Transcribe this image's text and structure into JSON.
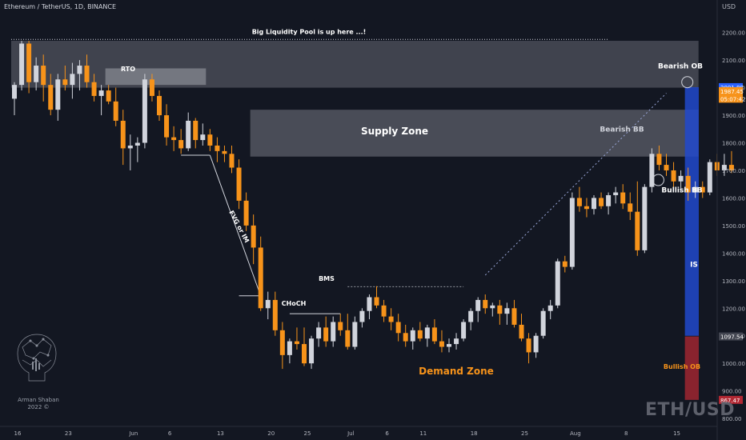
{
  "header": {
    "symbol": "Ethereum / TetherUS, 1D, BINANCE",
    "currency": "USD"
  },
  "watermark": "ETH/USD",
  "logo": {
    "name": "Arman Shaban",
    "year": "2022 ©"
  },
  "chart_data": {
    "type": "candlestick",
    "title": "",
    "ylim": [
      780,
      2260
    ],
    "y_ticks": [
      800,
      900,
      1000,
      1100,
      1200,
      1300,
      1400,
      1500,
      1600,
      1700,
      1800,
      1900,
      2000,
      2100,
      2200
    ],
    "x_ticks": [
      {
        "label": "16",
        "idx": 0
      },
      {
        "label": "23",
        "idx": 7
      },
      {
        "label": "Jun",
        "idx": 16
      },
      {
        "label": "6",
        "idx": 21
      },
      {
        "label": "13",
        "idx": 28
      },
      {
        "label": "20",
        "idx": 35
      },
      {
        "label": "25",
        "idx": 40
      },
      {
        "label": "Jul",
        "idx": 46
      },
      {
        "label": "6",
        "idx": 51
      },
      {
        "label": "11",
        "idx": 56
      },
      {
        "label": "18",
        "idx": 63
      },
      {
        "label": "25",
        "idx": 70
      },
      {
        "label": "Aug",
        "idx": 77
      },
      {
        "label": "8",
        "idx": 84
      },
      {
        "label": "15",
        "idx": 91
      }
    ],
    "price_labels": [
      {
        "value": 2001.88,
        "text": "2001.88",
        "color": "#2962ff"
      },
      {
        "value": 1987.45,
        "text": "1987.45",
        "color": "#f7931a"
      },
      {
        "value": 1960,
        "text": "05:07:42",
        "color": "#f7931a"
      },
      {
        "value": 1097.54,
        "text": "1097.54",
        "color": "#434651"
      },
      {
        "value": 867.47,
        "text": "867.47",
        "color": "#b22833"
      }
    ],
    "candles": [
      [
        1960,
        2020,
        1900,
        2010
      ],
      [
        2010,
        2170,
        1990,
        2160
      ],
      [
        2160,
        2170,
        1980,
        2020
      ],
      [
        2020,
        2110,
        1990,
        2080
      ],
      [
        2080,
        2120,
        1950,
        2010
      ],
      [
        2010,
        2050,
        1900,
        1920
      ],
      [
        1920,
        2050,
        1880,
        2030
      ],
      [
        2030,
        2080,
        1990,
        2010
      ],
      [
        2010,
        2090,
        1960,
        2050
      ],
      [
        2050,
        2100,
        1990,
        2080
      ],
      [
        2080,
        2120,
        2000,
        2020
      ],
      [
        2020,
        2050,
        1950,
        1970
      ],
      [
        1970,
        2010,
        1900,
        1990
      ],
      [
        1990,
        2010,
        1940,
        1950
      ],
      [
        1950,
        2000,
        1860,
        1880
      ],
      [
        1880,
        1920,
        1720,
        1780
      ],
      [
        1780,
        1830,
        1700,
        1790
      ],
      [
        1790,
        1820,
        1730,
        1800
      ],
      [
        1800,
        2050,
        1780,
        2030
      ],
      [
        2030,
        2050,
        1950,
        1970
      ],
      [
        1970,
        1990,
        1880,
        1900
      ],
      [
        1900,
        1940,
        1790,
        1820
      ],
      [
        1820,
        1860,
        1770,
        1810
      ],
      [
        1810,
        1850,
        1760,
        1780
      ],
      [
        1780,
        1910,
        1770,
        1880
      ],
      [
        1880,
        1890,
        1780,
        1810
      ],
      [
        1810,
        1870,
        1790,
        1830
      ],
      [
        1830,
        1850,
        1770,
        1790
      ],
      [
        1790,
        1820,
        1730,
        1770
      ],
      [
        1770,
        1790,
        1730,
        1760
      ],
      [
        1760,
        1790,
        1690,
        1710
      ],
      [
        1710,
        1740,
        1560,
        1590
      ],
      [
        1590,
        1620,
        1480,
        1500
      ],
      [
        1500,
        1540,
        1360,
        1420
      ],
      [
        1420,
        1460,
        1190,
        1200
      ],
      [
        1200,
        1260,
        1160,
        1230
      ],
      [
        1230,
        1260,
        1100,
        1120
      ],
      [
        1120,
        1150,
        980,
        1030
      ],
      [
        1030,
        1090,
        1000,
        1080
      ],
      [
        1080,
        1130,
        1050,
        1070
      ],
      [
        1070,
        1130,
        990,
        1000
      ],
      [
        1000,
        1100,
        980,
        1090
      ],
      [
        1090,
        1150,
        1060,
        1130
      ],
      [
        1130,
        1170,
        1060,
        1080
      ],
      [
        1080,
        1170,
        1060,
        1150
      ],
      [
        1150,
        1180,
        1100,
        1120
      ],
      [
        1120,
        1180,
        1050,
        1060
      ],
      [
        1060,
        1170,
        1050,
        1150
      ],
      [
        1150,
        1200,
        1130,
        1190
      ],
      [
        1190,
        1250,
        1160,
        1240
      ],
      [
        1240,
        1280,
        1200,
        1210
      ],
      [
        1210,
        1230,
        1150,
        1170
      ],
      [
        1170,
        1200,
        1120,
        1150
      ],
      [
        1150,
        1180,
        1080,
        1110
      ],
      [
        1110,
        1140,
        1060,
        1080
      ],
      [
        1080,
        1130,
        1050,
        1120
      ],
      [
        1120,
        1150,
        1080,
        1090
      ],
      [
        1090,
        1140,
        1060,
        1130
      ],
      [
        1130,
        1160,
        1070,
        1080
      ],
      [
        1080,
        1120,
        1040,
        1060
      ],
      [
        1060,
        1090,
        1040,
        1070
      ],
      [
        1070,
        1110,
        1050,
        1090
      ],
      [
        1090,
        1160,
        1080,
        1150
      ],
      [
        1150,
        1200,
        1120,
        1190
      ],
      [
        1190,
        1240,
        1150,
        1230
      ],
      [
        1230,
        1250,
        1180,
        1200
      ],
      [
        1200,
        1220,
        1170,
        1210
      ],
      [
        1210,
        1230,
        1140,
        1180
      ],
      [
        1180,
        1220,
        1140,
        1200
      ],
      [
        1200,
        1230,
        1130,
        1140
      ],
      [
        1140,
        1180,
        1080,
        1090
      ],
      [
        1090,
        1110,
        1000,
        1040
      ],
      [
        1040,
        1110,
        1020,
        1100
      ],
      [
        1100,
        1200,
        1090,
        1190
      ],
      [
        1190,
        1230,
        1160,
        1210
      ],
      [
        1210,
        1380,
        1200,
        1370
      ],
      [
        1370,
        1390,
        1330,
        1350
      ],
      [
        1350,
        1620,
        1340,
        1600
      ],
      [
        1600,
        1640,
        1550,
        1570
      ],
      [
        1570,
        1600,
        1530,
        1560
      ],
      [
        1560,
        1610,
        1540,
        1600
      ],
      [
        1600,
        1620,
        1560,
        1570
      ],
      [
        1570,
        1620,
        1540,
        1610
      ],
      [
        1610,
        1640,
        1580,
        1620
      ],
      [
        1620,
        1650,
        1560,
        1580
      ],
      [
        1580,
        1620,
        1520,
        1550
      ],
      [
        1550,
        1660,
        1390,
        1410
      ],
      [
        1410,
        1650,
        1400,
        1640
      ],
      [
        1640,
        1780,
        1620,
        1760
      ],
      [
        1760,
        1790,
        1700,
        1720
      ],
      [
        1720,
        1760,
        1680,
        1700
      ],
      [
        1700,
        1730,
        1640,
        1660
      ],
      [
        1660,
        1700,
        1620,
        1680
      ],
      [
        1680,
        1710,
        1590,
        1620
      ],
      [
        1620,
        1660,
        1600,
        1640
      ],
      [
        1640,
        1660,
        1600,
        1620
      ],
      [
        1620,
        1740,
        1610,
        1730
      ],
      [
        1730,
        1760,
        1680,
        1700
      ],
      [
        1700,
        1760,
        1680,
        1720
      ],
      [
        1720,
        1770,
        1690,
        1700
      ]
    ],
    "zones": [
      {
        "name": "Big Liquidity Pool zone",
        "from": 0,
        "to": 94,
        "low": 2000,
        "high": 2170,
        "color": "rgba(120,123,134,0.45)"
      },
      {
        "name": "RTO",
        "from": 13,
        "to": 26,
        "low": 2010,
        "high": 2070,
        "color": "rgba(180,183,190,0.45)"
      },
      {
        "name": "Supply Zone",
        "from": 33,
        "to": 94,
        "low": 1750,
        "high": 1920,
        "color": "rgba(140,143,154,0.45)"
      },
      {
        "name": "Blue Box",
        "from": 93,
        "to": 150,
        "low": 1100,
        "high": 2001.88,
        "color": "rgba(33,73,204,0.85)"
      },
      {
        "name": "Demand Zone",
        "from": 93,
        "to": 150,
        "low": 867.47,
        "high": 1097.54,
        "color": "rgba(178,40,51,0.75)"
      }
    ],
    "annotations": [
      {
        "text": "Big Liquidity Pool is up here ...!",
        "x": 66,
        "y": 2195
      },
      {
        "text": "RTO",
        "x": 28,
        "y": 2060
      },
      {
        "text": "Supply Zone",
        "x": 85,
        "y": 1830
      },
      {
        "text": "Bearish OB",
        "x": 146,
        "y": 2070
      },
      {
        "text": "Bearish BB",
        "x": 135,
        "y": 1840
      },
      {
        "text": "Bullish BB",
        "x": 146,
        "y": 1620
      },
      {
        "text": "IS",
        "x": 149,
        "y": 1350
      },
      {
        "text": "BMS",
        "x": 70,
        "y": 1300
      },
      {
        "text": "CHoCH",
        "x": 62,
        "y": 1210
      },
      {
        "text": "FVG or IM",
        "x": 50,
        "y": 1510
      },
      {
        "text": "Demand Zone",
        "x": 97,
        "y": 960
      },
      {
        "text": "Bullish OB",
        "x": 146,
        "y": 980
      }
    ]
  }
}
